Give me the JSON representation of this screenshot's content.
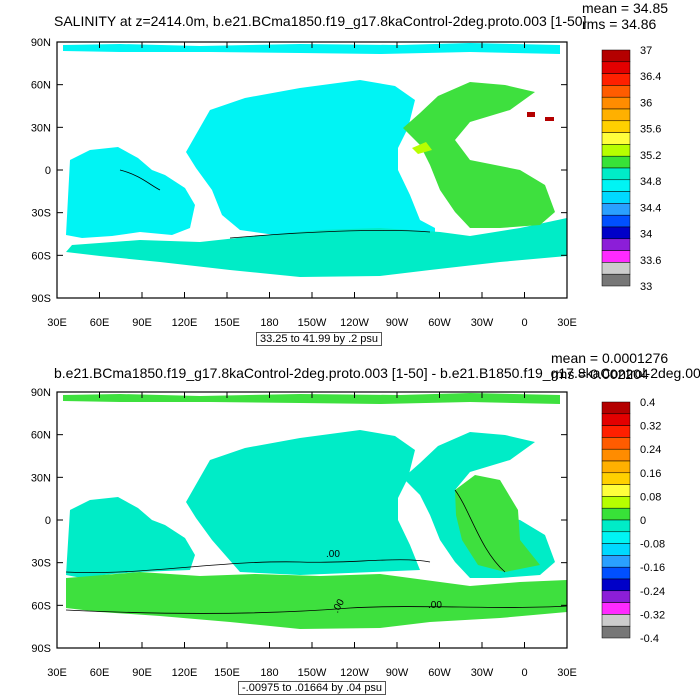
{
  "panels": [
    {
      "title": "SALINITY at z=2414.0m, b.e21.BCma1850.f19_g17.8kaControl-2deg.proto.003 [1-50]",
      "mean_label": "mean = 34.85",
      "rms_label": "rms = 34.86",
      "contour_interval": "33.25 to 41.99 by .2 psu",
      "lat_labels": [
        "90N",
        "60N",
        "30N",
        "0",
        "30S",
        "60S",
        "90S"
      ],
      "lon_labels": [
        "30E",
        "60E",
        "90E",
        "120E",
        "150E",
        "180",
        "150W",
        "120W",
        "90W",
        "60W",
        "30W",
        "0",
        "30E"
      ],
      "colorbar": {
        "labels": [
          "37",
          "36.4",
          "36",
          "35.6",
          "35.2",
          "34.8",
          "34.4",
          "34",
          "33.6",
          "33"
        ],
        "colors": [
          "#b40000",
          "#e30000",
          "#ff2000",
          "#ff5c00",
          "#ff8c00",
          "#ffb000",
          "#ffd000",
          "#ffff3c",
          "#b7ff00",
          "#38e238",
          "#00ecc7",
          "#00f4f4",
          "#00d9ff",
          "#2aa0ff",
          "#0050ff",
          "#0000c8",
          "#8c1ed8",
          "#ff2aff",
          "#cccccc",
          "#777777"
        ]
      },
      "map_colors": {
        "main": "#00f4f4",
        "second": "#00ecc7",
        "third": "#3ee03e",
        "high": "#b7ff00",
        "dot": "#b40000"
      }
    },
    {
      "title": "b.e21.BCma1850.f19_g17.8kaControl-2deg.proto.003 [1-50] - b.e21.B1850.f19_g17.8kaControl-2deg.00",
      "mean_label": "mean = 0.0001276",
      "rms_label": "rms = 0.002204",
      "contour_interval": "-.00975 to .01664 by .04 psu",
      "contour_labels": [
        ".00",
        ".00",
        ".00"
      ],
      "lat_labels": [
        "90N",
        "60N",
        "30N",
        "0",
        "30S",
        "60S",
        "90S"
      ],
      "lon_labels": [
        "30E",
        "60E",
        "90E",
        "120E",
        "150E",
        "180",
        "150W",
        "120W",
        "90W",
        "60W",
        "30W",
        "0",
        "30E"
      ],
      "colorbar": {
        "labels": [
          "0.4",
          "0.32",
          "0.24",
          "0.16",
          "0.08",
          "0",
          "-0.08",
          "-0.16",
          "-0.24",
          "-0.32",
          "-0.4"
        ],
        "colors": [
          "#b40000",
          "#e30000",
          "#ff2000",
          "#ff5c00",
          "#ff8c00",
          "#ffb000",
          "#ffd000",
          "#ffff3c",
          "#b7ff00",
          "#38e238",
          "#00ecc7",
          "#00f4f4",
          "#00d9ff",
          "#2aa0ff",
          "#0050ff",
          "#0000c8",
          "#8c1ed8",
          "#ff2aff",
          "#cccccc",
          "#777777"
        ]
      },
      "map_colors": {
        "main": "#00ecc7",
        "second": "#3ee03e",
        "third": "#00f4f4"
      }
    }
  ]
}
